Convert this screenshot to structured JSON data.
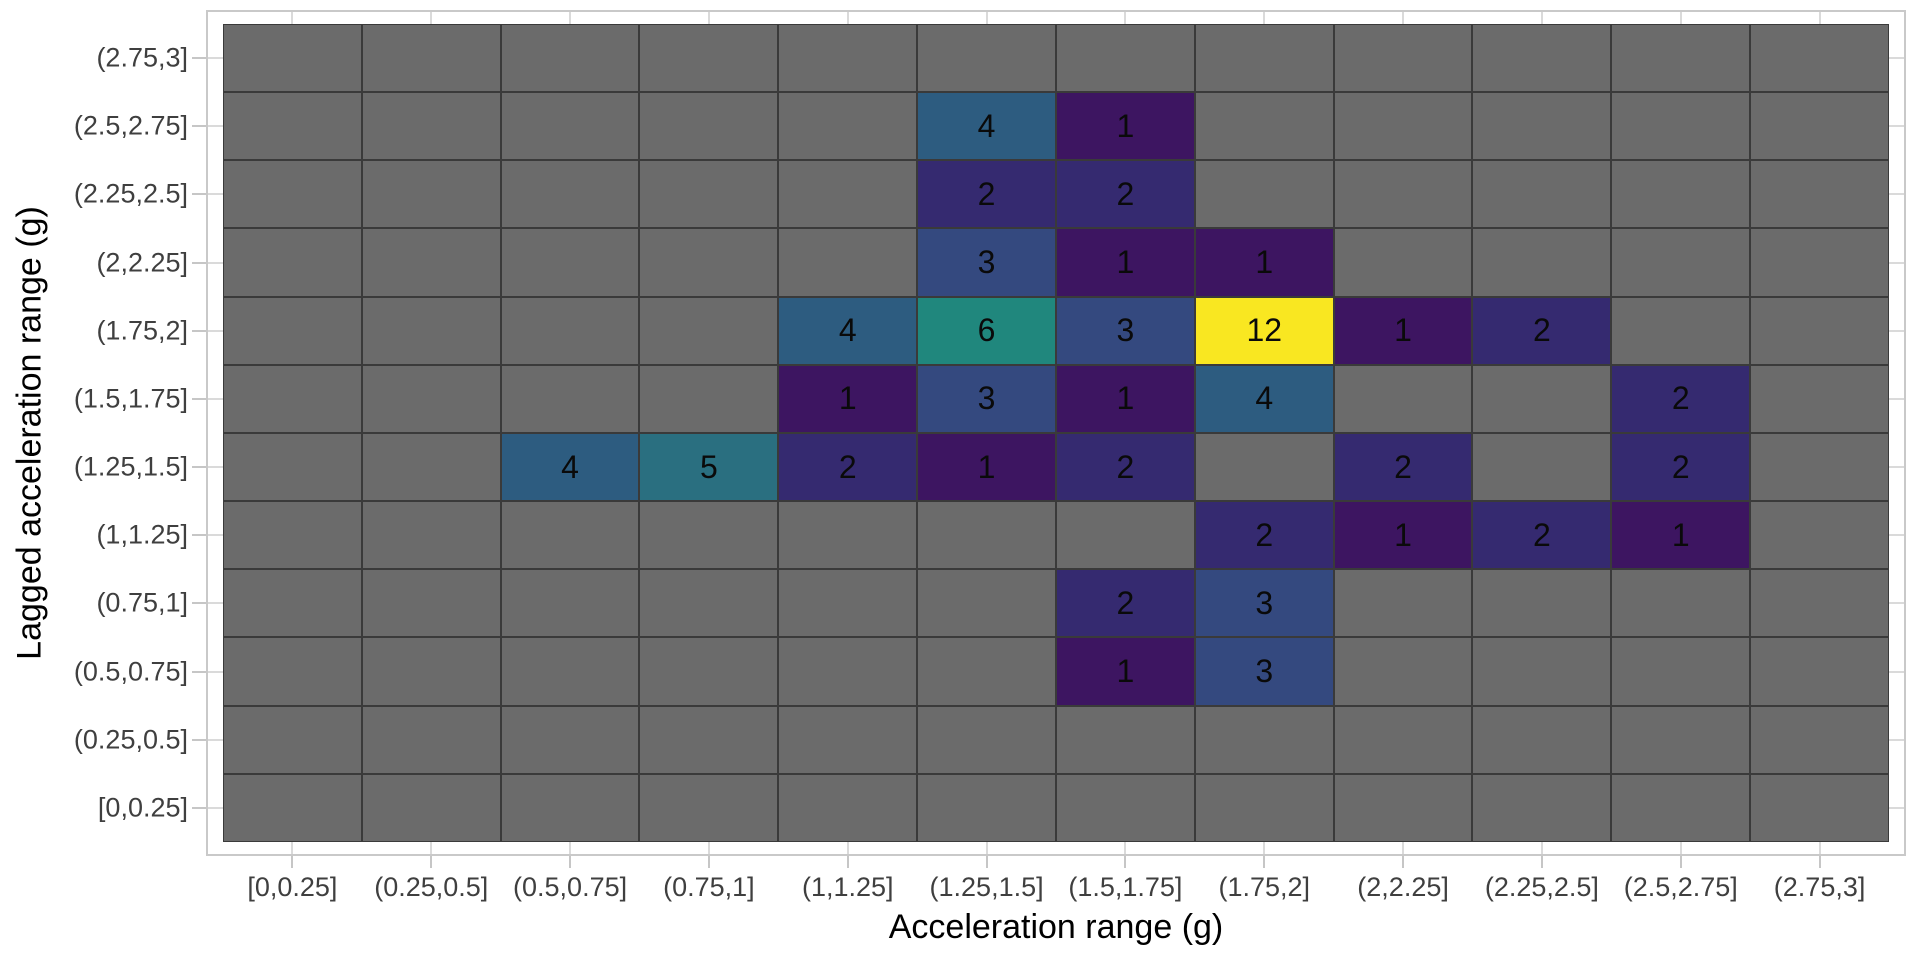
{
  "chart_data": {
    "type": "heatmap",
    "title": "",
    "xlabel": "Acceleration range (g)",
    "ylabel": "Lagged acceleration range (g)",
    "x_categories": [
      "[0,0.25]",
      "(0.25,0.5]",
      "(0.5,0.75]",
      "(0.75,1]",
      "(1,1.25]",
      "(1.25,1.5]",
      "(1.5,1.75]",
      "(1.75,2]",
      "(2,2.25]",
      "(2.25,2.5]",
      "(2.5,2.75]",
      "(2.75,3]"
    ],
    "y_categories_bottom_to_top": [
      "[0,0.25]",
      "(0.25,0.5]",
      "(0.5,0.75]",
      "(0.75,1]",
      "(1,1.25]",
      "(1.25,1.5]",
      "(1.5,1.75]",
      "(1.75,2]",
      "(2,2.25]",
      "(2.25,2.5]",
      "(2.5,2.75]",
      "(2.75,3]"
    ],
    "rows_top_to_bottom": [
      {
        "label": "(2.75,3]",
        "values": [
          null,
          null,
          null,
          null,
          null,
          null,
          null,
          null,
          null,
          null,
          null,
          null
        ]
      },
      {
        "label": "(2.5,2.75]",
        "values": [
          null,
          null,
          null,
          null,
          null,
          4,
          1,
          null,
          null,
          null,
          null,
          null
        ]
      },
      {
        "label": "(2.25,2.5]",
        "values": [
          null,
          null,
          null,
          null,
          null,
          2,
          2,
          null,
          null,
          null,
          null,
          null
        ]
      },
      {
        "label": "(2,2.25]",
        "values": [
          null,
          null,
          null,
          null,
          null,
          3,
          1,
          1,
          null,
          null,
          null,
          null
        ]
      },
      {
        "label": "(1.75,2]",
        "values": [
          null,
          null,
          null,
          null,
          4,
          6,
          3,
          12,
          1,
          2,
          null,
          null
        ]
      },
      {
        "label": "(1.5,1.75]",
        "values": [
          null,
          null,
          null,
          null,
          1,
          3,
          1,
          4,
          null,
          null,
          2,
          null
        ]
      },
      {
        "label": "(1.25,1.5]",
        "values": [
          null,
          null,
          4,
          5,
          2,
          1,
          2,
          null,
          2,
          null,
          2,
          null
        ]
      },
      {
        "label": "(1,1.25]",
        "values": [
          null,
          null,
          null,
          null,
          null,
          null,
          null,
          2,
          1,
          2,
          1,
          null
        ]
      },
      {
        "label": "(0.75,1]",
        "values": [
          null,
          null,
          null,
          null,
          null,
          null,
          2,
          3,
          null,
          null,
          null,
          null
        ]
      },
      {
        "label": "(0.5,0.75]",
        "values": [
          null,
          null,
          null,
          null,
          null,
          null,
          1,
          3,
          null,
          null,
          null,
          null
        ]
      },
      {
        "label": "(0.25,0.5]",
        "values": [
          null,
          null,
          null,
          null,
          null,
          null,
          null,
          null,
          null,
          null,
          null,
          null
        ]
      },
      {
        "label": "[0,0.25]",
        "values": [
          null,
          null,
          null,
          null,
          null,
          null,
          null,
          null,
          null,
          null,
          null,
          null
        ]
      }
    ],
    "value_range": [
      1,
      12
    ],
    "legend_position": "none",
    "grid": true,
    "colors": {
      "empty_cell": "#6b6b6b",
      "value_map": {
        "1": "#3d1561",
        "2": "#352a70",
        "3": "#34497f",
        "4": "#2d5c80",
        "5": "#2a6f80",
        "6": "#20877d",
        "12": "#f9e721"
      },
      "max_color": "#f9e721",
      "min_color": "#3d1561"
    }
  }
}
